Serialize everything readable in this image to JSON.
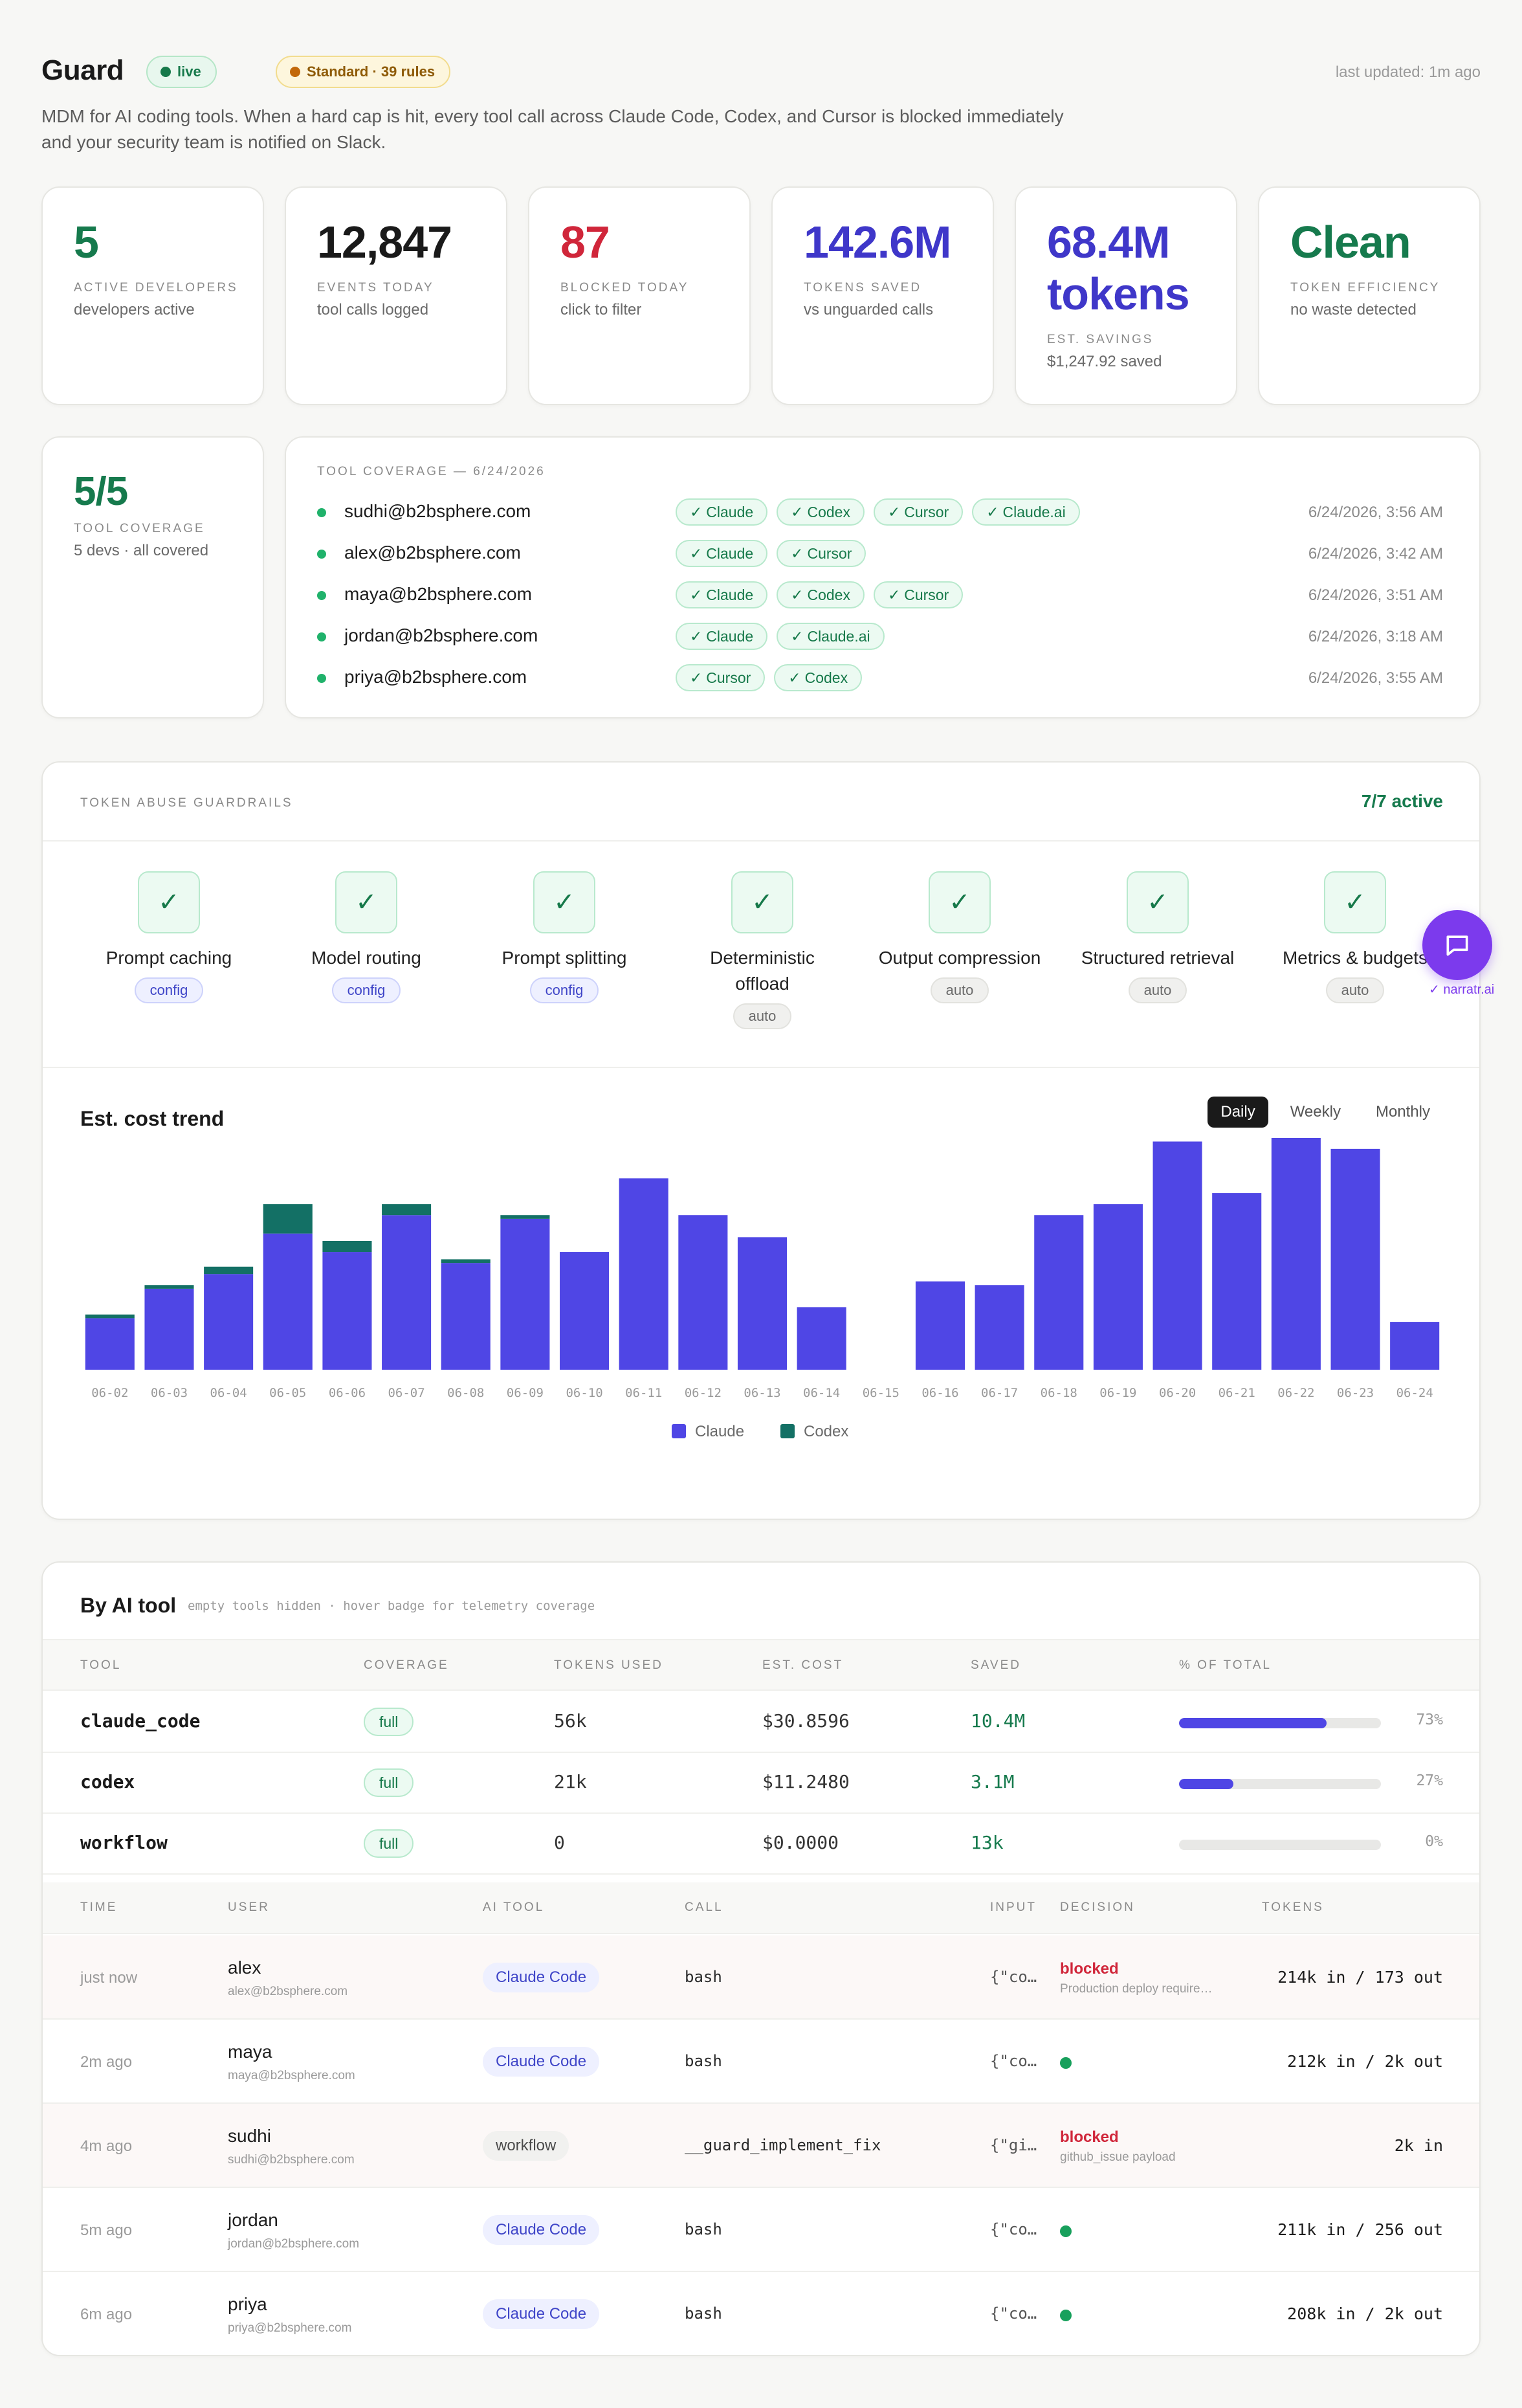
{
  "header": {
    "title": "Guard",
    "live_badge": "live",
    "standard_badge": "Standard · 39 rules",
    "last_updated": "last updated: 1m ago",
    "subtitle": "MDM for AI coding tools. When a hard cap is hit, every tool call across Claude Code, Codex, and Cursor is blocked immediately and your security team is notified on Slack."
  },
  "stats": [
    {
      "value": "5",
      "label": "ACTIVE DEVELOPERS",
      "sub": "developers active",
      "color": "#167a4d"
    },
    {
      "value": "12,847",
      "label": "EVENTS TODAY",
      "sub": "tool calls logged",
      "color": "#1a1a1a"
    },
    {
      "value": "87",
      "label": "BLOCKED TODAY",
      "sub": "click to filter",
      "color": "#d0263a"
    },
    {
      "value": "142.6M",
      "label": "TOKENS SAVED",
      "sub": "vs unguarded calls",
      "color": "#3f37c9"
    },
    {
      "value": "68.4M tokens",
      "label": "EST. SAVINGS",
      "sub": "$1,247.92 saved",
      "color": "#3f37c9"
    },
    {
      "value": "Clean",
      "label": "TOKEN EFFICIENCY",
      "sub": "no waste detected",
      "color": "#167a4d"
    }
  ],
  "coverage_card": {
    "value": "5/5",
    "label": "TOOL COVERAGE",
    "sub": "5 devs · all covered"
  },
  "coverage": {
    "heading": "TOOL COVERAGE — 6/24/2026",
    "rows": [
      {
        "user": "sudhi@b2bsphere.com",
        "tools": [
          "Claude",
          "Codex",
          "Cursor",
          "Claude.ai"
        ],
        "time": "6/24/2026, 3:56 AM"
      },
      {
        "user": "alex@b2bsphere.com",
        "tools": [
          "Claude",
          "Cursor"
        ],
        "time": "6/24/2026, 3:42 AM"
      },
      {
        "user": "maya@b2bsphere.com",
        "tools": [
          "Claude",
          "Codex",
          "Cursor"
        ],
        "time": "6/24/2026, 3:51 AM"
      },
      {
        "user": "jordan@b2bsphere.com",
        "tools": [
          "Claude",
          "Claude.ai"
        ],
        "time": "6/24/2026, 3:18 AM"
      },
      {
        "user": "priya@b2bsphere.com",
        "tools": [
          "Cursor",
          "Codex"
        ],
        "time": "6/24/2026, 3:55 AM"
      }
    ]
  },
  "guardrails": {
    "heading": "TOKEN ABUSE GUARDRAILS",
    "active": "7/7 active",
    "items": [
      {
        "name": "Prompt caching",
        "tag": "config"
      },
      {
        "name": "Model routing",
        "tag": "config"
      },
      {
        "name": "Prompt splitting",
        "tag": "config"
      },
      {
        "name": "Deterministic offload",
        "tag": "auto"
      },
      {
        "name": "Output compression",
        "tag": "auto"
      },
      {
        "name": "Structured retrieval",
        "tag": "auto"
      },
      {
        "name": "Metrics & budgets",
        "tag": "auto"
      }
    ],
    "chat_badge": "✓ narratr.ai"
  },
  "chart_tabs": [
    "Daily",
    "Weekly",
    "Monthly"
  ],
  "chart_data": {
    "type": "bar",
    "title": "Est. cost trend",
    "stacked": true,
    "categories": [
      "06-02",
      "06-03",
      "06-04",
      "06-05",
      "06-06",
      "06-07",
      "06-08",
      "06-09",
      "06-10",
      "06-11",
      "06-12",
      "06-13",
      "06-14",
      "06-15",
      "06-16",
      "06-17",
      "06-18",
      "06-19",
      "06-20",
      "06-21",
      "06-22",
      "06-23",
      "06-24"
    ],
    "series": [
      {
        "name": "Claude",
        "color": "#4f46e5",
        "values": [
          14,
          22,
          26,
          37,
          32,
          42,
          29,
          41,
          32,
          52,
          42,
          36,
          17,
          0,
          24,
          23,
          42,
          45,
          62,
          48,
          69,
          60,
          13
        ]
      },
      {
        "name": "Codex",
        "color": "#137065",
        "values": [
          1,
          1,
          2,
          8,
          3,
          3,
          1,
          1,
          0,
          0,
          0,
          0,
          0,
          0,
          0,
          0,
          0,
          0,
          0,
          0,
          0,
          0,
          0
        ]
      }
    ],
    "legend": "bottom-center",
    "ylim": [
      0,
      70
    ]
  },
  "tools_table": {
    "title": "By AI tool",
    "hint": "empty tools hidden · hover badge for telemetry coverage",
    "headers": [
      "TOOL",
      "COVERAGE",
      "TOKENS USED",
      "EST. COST",
      "SAVED",
      "% OF TOTAL"
    ],
    "rows": [
      {
        "tool": "claude_code",
        "coverage": "full",
        "tokens": "56k",
        "cost": "$30.8596",
        "saved": "10.4M",
        "pct_value": 73,
        "pct": "73%"
      },
      {
        "tool": "codex",
        "coverage": "full",
        "tokens": "21k",
        "cost": "$11.2480",
        "saved": "3.1M",
        "pct_value": 27,
        "pct": "27%"
      },
      {
        "tool": "workflow",
        "coverage": "full",
        "tokens": "0",
        "cost": "$0.0000",
        "saved": "13k",
        "pct_value": 0,
        "pct": "0%"
      }
    ]
  },
  "events": {
    "headers": [
      "TIME",
      "USER",
      "AI TOOL",
      "CALL",
      "INPUT",
      "DECISION",
      "TOKENS"
    ],
    "rows": [
      {
        "time": "just now",
        "user": "alex",
        "email": "alex@b2bsphere.com",
        "tool": "Claude Code",
        "call": "bash",
        "input": "{\"co…",
        "decision": "blocked",
        "reason": "Production deploy require…",
        "tokens": "214k in / 173 out"
      },
      {
        "time": "2m ago",
        "user": "maya",
        "email": "maya@b2bsphere.com",
        "tool": "Claude Code",
        "call": "bash",
        "input": "{\"co…",
        "decision": "allowed",
        "reason": "",
        "tokens": "212k in / 2k out"
      },
      {
        "time": "4m ago",
        "user": "sudhi",
        "email": "sudhi@b2bsphere.com",
        "tool": "workflow",
        "call": "__guard_implement_fix",
        "input": "{\"gi…",
        "decision": "blocked",
        "reason": "github_issue payload",
        "tokens": "2k in"
      },
      {
        "time": "5m ago",
        "user": "jordan",
        "email": "jordan@b2bsphere.com",
        "tool": "Claude Code",
        "call": "bash",
        "input": "{\"co…",
        "decision": "allowed",
        "reason": "",
        "tokens": "211k in / 256 out"
      },
      {
        "time": "6m ago",
        "user": "priya",
        "email": "priya@b2bsphere.com",
        "tool": "Claude Code",
        "call": "bash",
        "input": "{\"co…",
        "decision": "allowed",
        "reason": "",
        "tokens": "208k in / 2k out"
      }
    ]
  }
}
